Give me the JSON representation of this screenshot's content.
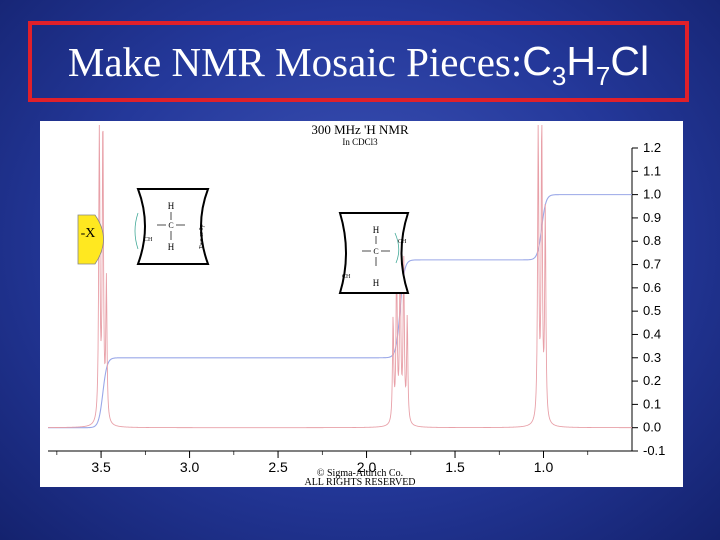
{
  "slide": {
    "title_main": "Make NMR Mosaic Pieces: ",
    "formula": {
      "c": "C",
      "c_sub": "3",
      "h": "H",
      "h_sub": "7",
      "cl": "Cl"
    }
  },
  "chart_data": {
    "type": "line",
    "title": "300 MHz 'H NMR",
    "subtitle": "In CDCl3",
    "xlim": [
      3.8,
      0.5
    ],
    "x_ticks": [
      "3.5",
      "3.0",
      "2.5",
      "2.0",
      "1.5",
      "1.0"
    ],
    "x_tick_values": [
      3.5,
      3.0,
      2.5,
      2.0,
      1.5,
      1.0
    ],
    "ylim": [
      -0.1,
      1.2
    ],
    "y_ticks": [
      "1.2",
      "1.1",
      "1.0",
      "0.9",
      "0.8",
      "0.7",
      "0.6",
      "0.5",
      "0.4",
      "0.3",
      "0.2",
      "0.1",
      "0.0",
      "-0.1"
    ],
    "y_tick_values": [
      1.2,
      1.1,
      1.0,
      0.9,
      0.8,
      0.7,
      0.6,
      0.5,
      0.4,
      0.3,
      0.2,
      0.1,
      0.0,
      -0.1
    ],
    "peaks": [
      {
        "shift": 3.51,
        "height": 1.3,
        "width": 0.004
      },
      {
        "shift": 3.49,
        "height": 1.3,
        "width": 0.004
      },
      {
        "shift": 3.47,
        "height": 0.6,
        "width": 0.004
      },
      {
        "shift": 1.85,
        "height": 0.45,
        "width": 0.004
      },
      {
        "shift": 1.83,
        "height": 0.7,
        "width": 0.004
      },
      {
        "shift": 1.81,
        "height": 0.75,
        "width": 0.004
      },
      {
        "shift": 1.79,
        "height": 0.7,
        "width": 0.004
      },
      {
        "shift": 1.77,
        "height": 0.45,
        "width": 0.004
      },
      {
        "shift": 1.03,
        "height": 1.3,
        "width": 0.004
      },
      {
        "shift": 1.01,
        "height": 1.3,
        "width": 0.004
      },
      {
        "shift": 0.99,
        "height": 0.9,
        "width": 0.004
      }
    ],
    "integral": {
      "steps": [
        {
          "shift": 3.49,
          "from": 0.0,
          "to": 0.3
        },
        {
          "shift": 1.81,
          "from": 0.3,
          "to": 0.72
        },
        {
          "shift": 1.01,
          "from": 0.72,
          "to": 1.0
        }
      ]
    },
    "copyright": [
      "© Sigma-Aldrich Co.",
      "ALL RIGHTS RESERVED"
    ]
  },
  "pieces": {
    "x_piece": {
      "label": "-X",
      "color": "#ffe820"
    },
    "ch2_piece_a": {
      "top": "H",
      "center": "C",
      "bottom": "H",
      "left": "CH",
      "right": "Two or 3p"
    },
    "ch2_piece_b": {
      "top": "H",
      "center": "C",
      "bottom": "H",
      "left": "CH",
      "right": "CH"
    }
  },
  "colors": {
    "spectrum": "#e8a0a8",
    "integral": "#9aa8e8",
    "frame": "#000000"
  }
}
